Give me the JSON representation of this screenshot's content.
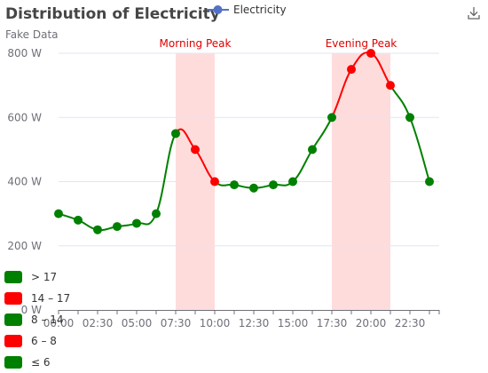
{
  "chart_data": {
    "type": "line",
    "title": "Distribution of Electricity",
    "subtitle": "Fake Data",
    "legend": [
      "Electricity"
    ],
    "series": [
      {
        "name": "Electricity",
        "x": [
          "00:00",
          "01:15",
          "02:30",
          "03:45",
          "05:00",
          "06:15",
          "07:30",
          "08:45",
          "10:00",
          "11:15",
          "12:30",
          "13:45",
          "15:00",
          "16:15",
          "17:30",
          "18:45",
          "20:00",
          "21:15",
          "22:30",
          "23:45"
        ],
        "values": [
          300,
          280,
          250,
          260,
          270,
          300,
          550,
          500,
          400,
          390,
          380,
          390,
          400,
          500,
          600,
          750,
          800,
          700,
          600,
          400
        ]
      }
    ],
    "x_ticks": [
      "00:00",
      "02:30",
      "05:00",
      "07:30",
      "10:00",
      "12:30",
      "15:00",
      "17:30",
      "20:00",
      "22:30"
    ],
    "y_ticks": [
      "0 W",
      "200 W",
      "400 W",
      "600 W",
      "800 W"
    ],
    "ylim": [
      0,
      800
    ],
    "mark_areas": [
      {
        "label": "Morning Peak",
        "from": "07:30",
        "to": "10:00"
      },
      {
        "label": "Evening Peak",
        "from": "17:30",
        "to": "21:15"
      }
    ],
    "visual_pieces": [
      {
        "label": "> 17",
        "color": "#008000"
      },
      {
        "label": "14 – 17",
        "color": "#ff0000"
      },
      {
        "label": "8 – 14",
        "color": "#008000"
      },
      {
        "label": "6 – 8",
        "color": "#ff0000"
      },
      {
        "label": "≤ 6",
        "color": "#008000"
      }
    ],
    "grid": true,
    "legend_position": "top"
  },
  "colors": {
    "legend_marker": "#5470c6",
    "grid_line": "#e0e6f1",
    "axis_line": "#6e7079",
    "mark_area": "#ffdcdc",
    "green": "#008000",
    "red": "#ff0000"
  },
  "toolbox": {
    "download_icon": "download-icon"
  }
}
